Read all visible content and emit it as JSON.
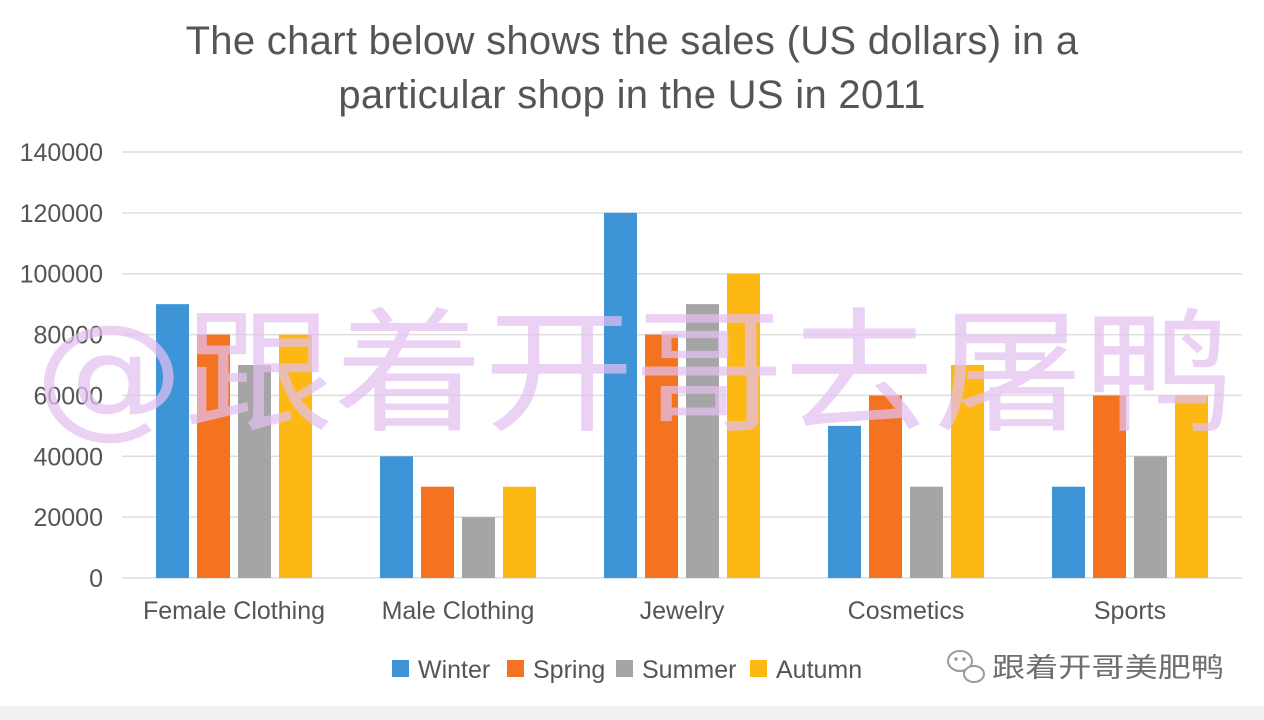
{
  "chart_data": {
    "type": "bar",
    "title_lines": [
      "The chart below shows the sales (US dollars) in a",
      "particular shop in the US in 2011"
    ],
    "categories": [
      "Female Clothing",
      "Male Clothing",
      "Jewelry",
      "Cosmetics",
      "Sports"
    ],
    "series": [
      {
        "name": "Winter",
        "color": "#3d95d8",
        "values": [
          90000,
          40000,
          120000,
          50000,
          30000
        ]
      },
      {
        "name": "Spring",
        "color": "#f47320",
        "values": [
          80000,
          30000,
          80000,
          60000,
          60000
        ]
      },
      {
        "name": "Summer",
        "color": "#a5a5a5",
        "values": [
          70000,
          20000,
          90000,
          30000,
          40000
        ]
      },
      {
        "name": "Autumn",
        "color": "#fdb813",
        "values": [
          80000,
          30000,
          100000,
          70000,
          60000
        ]
      }
    ],
    "ylim": [
      0,
      140000
    ],
    "yticks": [
      0,
      20000,
      40000,
      60000,
      80000,
      100000,
      120000,
      140000
    ],
    "grid": true,
    "legend_position": "bottom"
  },
  "watermark": {
    "text": "@跟着开哥去屠鸭",
    "color": "#e3bff0"
  },
  "wechat_tag": {
    "icon": "wechat-icon",
    "text": "跟着开哥美肥鸭"
  }
}
